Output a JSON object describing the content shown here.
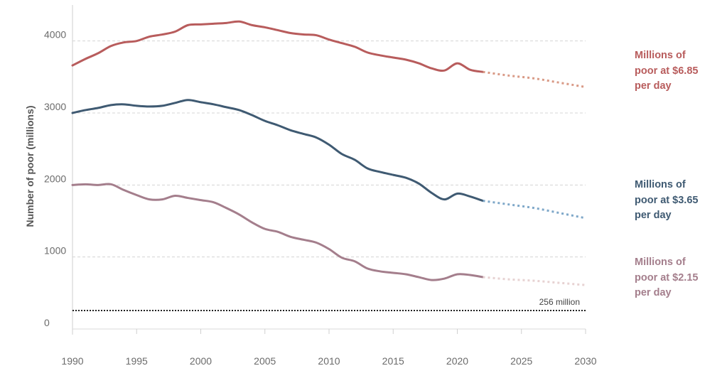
{
  "chart_data": {
    "type": "line",
    "title": "",
    "xlabel": "",
    "ylabel": "Number of poor (millions)",
    "xlim": [
      1990,
      2030
    ],
    "ylim": [
      0,
      4500
    ],
    "x_ticks": [
      1990,
      1995,
      2000,
      2005,
      2010,
      2015,
      2020,
      2025,
      2030
    ],
    "y_ticks": [
      0,
      1000,
      2000,
      3000,
      4000
    ],
    "grid": "horizontal dashed",
    "series": [
      {
        "name": "Millions of poor at $6.85 per day",
        "color": "#b85c5c",
        "projection_color": "#d99a86",
        "x": [
          1990,
          1991,
          1992,
          1993,
          1994,
          1995,
          1996,
          1997,
          1998,
          1999,
          2000,
          2001,
          2002,
          2003,
          2004,
          2005,
          2006,
          2007,
          2008,
          2009,
          2010,
          2011,
          2012,
          2013,
          2014,
          2015,
          2016,
          2017,
          2018,
          2019,
          2020,
          2021,
          2022
        ],
        "values": [
          3660,
          3750,
          3830,
          3930,
          3980,
          4000,
          4060,
          4090,
          4130,
          4220,
          4230,
          4240,
          4250,
          4270,
          4220,
          4190,
          4150,
          4110,
          4090,
          4080,
          4020,
          3970,
          3920,
          3840,
          3800,
          3770,
          3740,
          3690,
          3620,
          3590,
          3690,
          3600,
          3570
        ],
        "projection": {
          "x": [
            2022,
            2024,
            2026,
            2028,
            2030
          ],
          "values": [
            3570,
            3520,
            3480,
            3420,
            3360
          ]
        }
      },
      {
        "name": "Millions of poor at $3.65 per day",
        "color": "#3f5a72",
        "projection_color": "#7fa8c9",
        "x": [
          1990,
          1991,
          1992,
          1993,
          1994,
          1995,
          1996,
          1997,
          1998,
          1999,
          2000,
          2001,
          2002,
          2003,
          2004,
          2005,
          2006,
          2007,
          2008,
          2009,
          2010,
          2011,
          2012,
          2013,
          2014,
          2015,
          2016,
          2017,
          2018,
          2019,
          2020,
          2021,
          2022
        ],
        "values": [
          3000,
          3040,
          3070,
          3110,
          3120,
          3100,
          3090,
          3100,
          3140,
          3180,
          3150,
          3120,
          3080,
          3040,
          2970,
          2890,
          2830,
          2760,
          2710,
          2660,
          2560,
          2430,
          2350,
          2230,
          2180,
          2140,
          2100,
          2020,
          1890,
          1800,
          1880,
          1840,
          1780
        ],
        "projection": {
          "x": [
            2022,
            2024,
            2026,
            2028,
            2030
          ],
          "values": [
            1780,
            1730,
            1680,
            1610,
            1540
          ]
        }
      },
      {
        "name": "Millions of poor at $2.15 per day",
        "color": "#a47e8c",
        "projection_color": "#e7d2d2",
        "x": [
          1990,
          1991,
          1992,
          1993,
          1994,
          1995,
          1996,
          1997,
          1998,
          1999,
          2000,
          2001,
          2002,
          2003,
          2004,
          2005,
          2006,
          2007,
          2008,
          2009,
          2010,
          2011,
          2012,
          2013,
          2014,
          2015,
          2016,
          2017,
          2018,
          2019,
          2020,
          2021,
          2022
        ],
        "values": [
          2000,
          2010,
          2000,
          2010,
          1930,
          1860,
          1800,
          1800,
          1850,
          1820,
          1790,
          1760,
          1680,
          1590,
          1480,
          1390,
          1350,
          1280,
          1240,
          1200,
          1110,
          990,
          940,
          840,
          800,
          780,
          760,
          720,
          680,
          700,
          760,
          750,
          720
        ],
        "projection": {
          "x": [
            2022,
            2024,
            2026,
            2028,
            2030
          ],
          "values": [
            720,
            690,
            670,
            640,
            610
          ]
        }
      }
    ],
    "reference_line": {
      "value": 256,
      "label": "256 million",
      "style": "dotted",
      "color": "#222222"
    },
    "legend": [
      {
        "lines": [
          "Millions of",
          "poor at $6.85",
          "per day"
        ],
        "color": "#b85c5c"
      },
      {
        "lines": [
          "Millions of",
          "poor at $3.65",
          "per day"
        ],
        "color": "#3f5a72"
      },
      {
        "lines": [
          "Millions of",
          "poor at $2.15",
          "per day"
        ],
        "color": "#a47e8c"
      }
    ]
  }
}
